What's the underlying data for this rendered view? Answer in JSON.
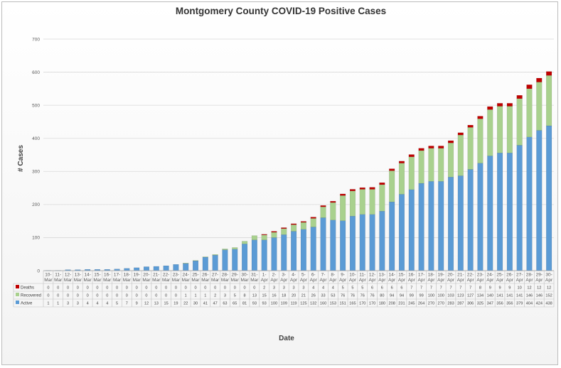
{
  "chart_data": {
    "type": "bar",
    "stacked": true,
    "title": "Montgomery County COVID-19 Positive Cases",
    "xlabel": "Date",
    "ylabel": "# Cases",
    "ylim": [
      0,
      700
    ],
    "yticks": [
      0,
      100,
      200,
      300,
      400,
      500,
      600,
      700
    ],
    "grid": true,
    "legend": "data-table-left",
    "categories": [
      "10-Mar",
      "11-Mar",
      "12-Mar",
      "13-Mar",
      "14-Mar",
      "15-Mar",
      "16-Mar",
      "17-Mar",
      "18-Mar",
      "19-Mar",
      "20-Mar",
      "21-Mar",
      "22-Mar",
      "23-Mar",
      "24-Mar",
      "25-Mar",
      "26-Mar",
      "27-Mar",
      "28-Mar",
      "29-Mar",
      "30-Mar",
      "31-Mar",
      "1-Apr",
      "2-Apr",
      "3-Apr",
      "4-Apr",
      "5-Apr",
      "6-Apr",
      "7-Apr",
      "8-Apr",
      "9-Apr",
      "10-Apr",
      "11-Apr",
      "12-Apr",
      "13-Apr",
      "14-Apr",
      "15-Apr",
      "16-Apr",
      "17-Apr",
      "18-Apr",
      "19-Apr",
      "20-Apr",
      "21-Apr",
      "22-Apr",
      "23-Apr",
      "24-Apr",
      "25-Apr",
      "26-Apr",
      "27-Apr",
      "28-Apr",
      "29-Apr",
      "30-Apr"
    ],
    "series": [
      {
        "name": "Active",
        "color": "#5b9bd5",
        "values": [
          1,
          1,
          3,
          3,
          4,
          4,
          4,
          5,
          7,
          9,
          12,
          13,
          15,
          19,
          22,
          30,
          41,
          47,
          63,
          65,
          81,
          93,
          93,
          100,
          109,
          119,
          125,
          132,
          160,
          153,
          151,
          165,
          170,
          170,
          180,
          208,
          231,
          245,
          264,
          270,
          270,
          283,
          287,
          306,
          325,
          347,
          356,
          356,
          379,
          404,
          424,
          438
        ]
      },
      {
        "name": "Recovered",
        "color": "#a9d18e",
        "values": [
          0,
          0,
          0,
          0,
          0,
          0,
          0,
          0,
          0,
          0,
          0,
          0,
          0,
          0,
          1,
          1,
          1,
          2,
          3,
          5,
          8,
          13,
          15,
          16,
          18,
          20,
          21,
          26,
          33,
          53,
          76,
          76,
          76,
          76,
          80,
          94,
          94,
          99,
          99,
          100,
          100,
          103,
          123,
          127,
          134,
          140,
          141,
          141,
          141,
          146,
          146,
          152
        ]
      },
      {
        "name": "Deaths",
        "color": "#c00000",
        "values": [
          0,
          0,
          0,
          0,
          0,
          0,
          0,
          0,
          0,
          0,
          0,
          0,
          0,
          0,
          0,
          0,
          0,
          0,
          0,
          0,
          0,
          0,
          2,
          3,
          3,
          3,
          3,
          4,
          4,
          4,
          5,
          5,
          5,
          6,
          6,
          6,
          6,
          7,
          7,
          7,
          7,
          7,
          7,
          7,
          8,
          9,
          9,
          9,
          10,
          12,
          12,
          12
        ]
      }
    ]
  }
}
